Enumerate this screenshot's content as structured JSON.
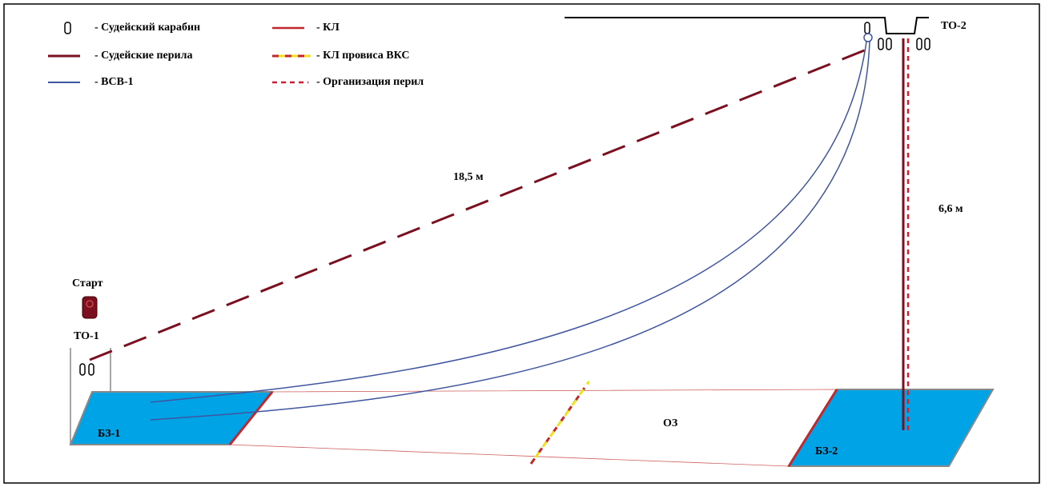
{
  "legend": [
    {
      "label": "- Судейский карабин"
    },
    {
      "label": "- Судейские перила"
    },
    {
      "label": "- ВСВ-1"
    },
    {
      "label": "- КЛ"
    },
    {
      "label": "- КЛ провиса ВКС"
    },
    {
      "label": "- Организация перил"
    }
  ],
  "labels": {
    "to2": "ТО-2",
    "to1": "ТО-1",
    "start": "Старт",
    "distance_diagonal": "18,5 м",
    "distance_vertical": "6,6 м",
    "bz1": "БЗ-1",
    "oz": "ОЗ",
    "bz2": "БЗ-2"
  }
}
